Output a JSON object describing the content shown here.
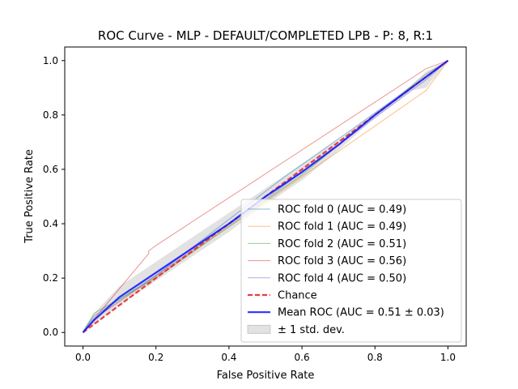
{
  "chart_data": {
    "type": "line",
    "title": "ROC Curve - MLP - DEFAULT/COMPLETED LPB - P: 8, R:1",
    "xlabel": "False Positive Rate",
    "ylabel": "True Positive Rate",
    "xlim": [
      -0.05,
      1.05
    ],
    "ylim": [
      -0.05,
      1.05
    ],
    "xticks": [
      0.0,
      0.2,
      0.4,
      0.6,
      0.8,
      1.0
    ],
    "yticks": [
      0.0,
      0.2,
      0.4,
      0.6,
      0.8,
      1.0
    ],
    "xtick_labels": [
      "0.0",
      "0.2",
      "0.4",
      "0.6",
      "0.8",
      "1.0"
    ],
    "ytick_labels": [
      "0.0",
      "0.2",
      "0.4",
      "0.6",
      "0.8",
      "1.0"
    ],
    "grid": false,
    "legend_position": "lower-right",
    "series": [
      {
        "name": "ROC fold 0 (AUC = 0.49)",
        "color": "#1f77b4",
        "opacity": 0.5,
        "width": 1,
        "dash": "",
        "x": [
          0.0,
          0.03,
          0.2,
          0.55,
          0.94,
          1.0
        ],
        "y": [
          0.0,
          0.06,
          0.21,
          0.57,
          0.94,
          1.0
        ]
      },
      {
        "name": "ROC fold 1 (AUC = 0.49)",
        "color": "#ff7f0e",
        "opacity": 0.5,
        "width": 1,
        "dash": "",
        "x": [
          0.0,
          0.03,
          0.5,
          0.94,
          1.0
        ],
        "y": [
          0.0,
          0.05,
          0.48,
          0.89,
          1.0
        ]
      },
      {
        "name": "ROC fold 2 (AUC = 0.51)",
        "color": "#2ca02c",
        "opacity": 0.5,
        "width": 1,
        "dash": "",
        "x": [
          0.0,
          0.03,
          0.2,
          0.6,
          0.94,
          1.0
        ],
        "y": [
          0.0,
          0.07,
          0.2,
          0.58,
          0.95,
          1.0
        ]
      },
      {
        "name": "ROC fold 3 (AUC = 0.56)",
        "color": "#d62728",
        "opacity": 0.5,
        "width": 1,
        "dash": "",
        "x": [
          0.0,
          0.18,
          0.18,
          0.2,
          0.94,
          1.0
        ],
        "y": [
          0.0,
          0.29,
          0.3,
          0.32,
          0.97,
          1.0
        ]
      },
      {
        "name": "ROC fold 4 (AUC = 0.50)",
        "color": "#6a5acd",
        "opacity": 0.5,
        "width": 1,
        "dash": "",
        "x": [
          0.0,
          0.03,
          0.5,
          0.94,
          1.0
        ],
        "y": [
          0.0,
          0.05,
          0.49,
          0.93,
          1.0
        ]
      },
      {
        "name": "Chance",
        "color": "#e8282b",
        "opacity": 0.9,
        "width": 2.2,
        "dash": "6,3",
        "x": [
          0.0,
          1.0
        ],
        "y": [
          0.0,
          1.0
        ]
      },
      {
        "name": "Mean ROC (AUC = 0.51 ± 0.03)",
        "color": "#1a1aff",
        "opacity": 0.9,
        "width": 2.2,
        "dash": "",
        "x": [
          0.0,
          0.03,
          0.1,
          0.2,
          0.3,
          0.4,
          0.5,
          0.6,
          0.7,
          0.8,
          0.9,
          0.94,
          1.0
        ],
        "y": [
          0.0,
          0.045,
          0.13,
          0.22,
          0.31,
          0.4,
          0.5,
          0.59,
          0.69,
          0.8,
          0.9,
          0.94,
          1.0
        ]
      }
    ],
    "band": {
      "name": "± 1 std. dev.",
      "color": "#a0a0a0",
      "opacity": 0.3,
      "x": [
        0.0,
        0.03,
        0.1,
        0.2,
        0.3,
        0.4,
        0.5,
        0.6,
        0.7,
        0.8,
        0.9,
        0.94,
        1.0
      ],
      "upper": [
        0.01,
        0.07,
        0.17,
        0.26,
        0.35,
        0.44,
        0.53,
        0.62,
        0.71,
        0.81,
        0.91,
        0.96,
        1.0
      ],
      "lower": [
        0.0,
        0.03,
        0.1,
        0.19,
        0.28,
        0.37,
        0.47,
        0.56,
        0.67,
        0.79,
        0.89,
        0.9,
        1.0
      ]
    },
    "legend_entries": [
      "ROC fold 0 (AUC = 0.49)",
      "ROC fold 1 (AUC = 0.49)",
      "ROC fold 2 (AUC = 0.51)",
      "ROC fold 3 (AUC = 0.56)",
      "ROC fold 4 (AUC = 0.50)",
      "Chance",
      "Mean ROC (AUC = 0.51 ± 0.03)",
      "± 1 std. dev."
    ]
  }
}
